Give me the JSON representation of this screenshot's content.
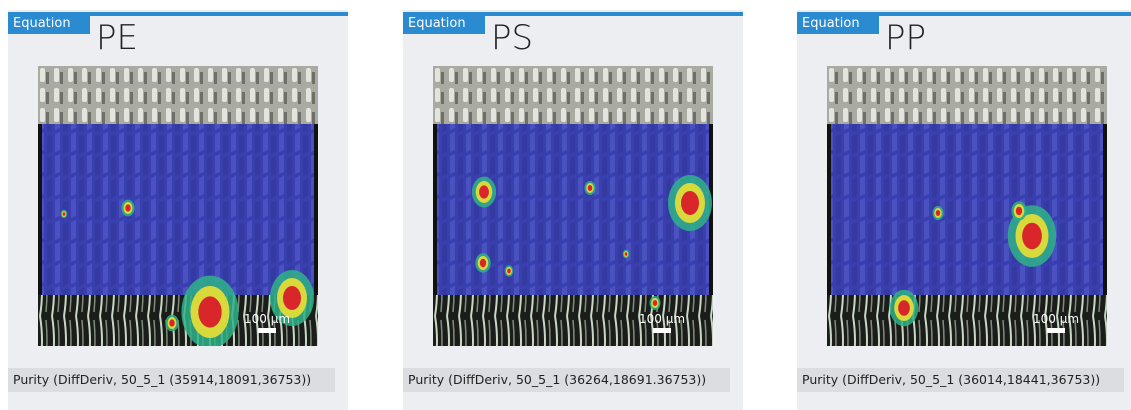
{
  "panels": [
    {
      "tab": "Equation",
      "title": "PE",
      "scale_label": "100 µm",
      "caption": "Purity (DiffDeriv, 50_5_1 (35914,18091,36753))"
    },
    {
      "tab": "Equation",
      "title": "PS",
      "scale_label": "100 µm",
      "caption": "Purity (DiffDeriv, 50_5_1 (36264,18691.36753))"
    },
    {
      "tab": "Equation",
      "title": "PP",
      "scale_label": "100 µm",
      "caption": "Purity (DiffDeriv, 50_5_1 (36014,18441,36753))"
    }
  ]
}
